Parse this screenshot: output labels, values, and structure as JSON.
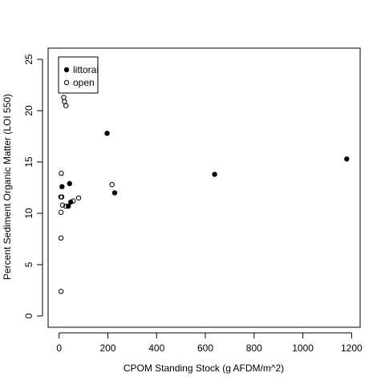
{
  "chart_data": {
    "type": "scatter",
    "title": "",
    "xlabel": "CPOM Standing Stock (g AFDM/m^2)",
    "ylabel": "Percent Sediment Organic Matter (LOI 550)",
    "xlim": [
      -45,
      1235
    ],
    "ylim": [
      -1.1,
      26.1
    ],
    "xticks": [
      0,
      200,
      400,
      600,
      800,
      1000,
      1200
    ],
    "yticks": [
      0,
      5,
      10,
      15,
      20,
      25
    ],
    "grid": false,
    "legend_position": "top-left",
    "series": [
      {
        "name": "littoral",
        "marker": "filled-circle",
        "color": "#000000",
        "points": [
          {
            "x": 12,
            "y": 12.6
          },
          {
            "x": 38,
            "y": 10.7
          },
          {
            "x": 43,
            "y": 12.9
          },
          {
            "x": 48,
            "y": 11.1
          },
          {
            "x": 197,
            "y": 17.8
          },
          {
            "x": 228,
            "y": 12.0
          },
          {
            "x": 638,
            "y": 13.8
          },
          {
            "x": 1180,
            "y": 15.3
          }
        ]
      },
      {
        "name": "open",
        "marker": "open-circle",
        "color": "#000000",
        "points": [
          {
            "x": 8,
            "y": 2.4
          },
          {
            "x": 8,
            "y": 7.6
          },
          {
            "x": 8,
            "y": 10.1
          },
          {
            "x": 7,
            "y": 11.6
          },
          {
            "x": 11,
            "y": 11.6
          },
          {
            "x": 9,
            "y": 13.9
          },
          {
            "x": 14,
            "y": 10.8
          },
          {
            "x": 28,
            "y": 10.7
          },
          {
            "x": 58,
            "y": 11.2
          },
          {
            "x": 80,
            "y": 11.5
          },
          {
            "x": 217,
            "y": 12.8
          },
          {
            "x": 19,
            "y": 21.3
          },
          {
            "x": 22,
            "y": 20.9
          },
          {
            "x": 28,
            "y": 20.5
          }
        ]
      }
    ]
  }
}
